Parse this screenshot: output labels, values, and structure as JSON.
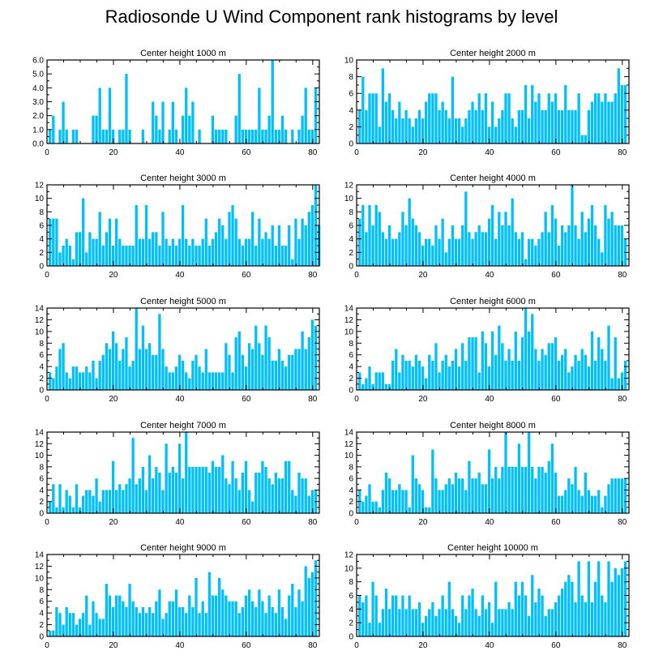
{
  "title": "Radiosonde U Wind Component rank histograms by level",
  "colors": {
    "bar": "#00bfff",
    "frame": "#000000"
  },
  "chart_data": [
    {
      "type": "bar",
      "title": "Center height 1000 m",
      "xlim": [
        0,
        82
      ],
      "ylim": [
        0,
        6
      ],
      "xticks": [
        "0",
        "20",
        "40",
        "60",
        "80"
      ],
      "yticks": [
        "0.0",
        "1.0",
        "2.0",
        "3.0",
        "4.0",
        "5.0",
        "6.0"
      ],
      "values": [
        1,
        2,
        0,
        1,
        3,
        1,
        0,
        1,
        1,
        0,
        0,
        0,
        0,
        2,
        2,
        4,
        1,
        1,
        4,
        1,
        0,
        1,
        1,
        5,
        1,
        0,
        0,
        0,
        1,
        0,
        0,
        3,
        2,
        1,
        3,
        0,
        1,
        3,
        1,
        0,
        2,
        4,
        2,
        3,
        0,
        1,
        0,
        0,
        0,
        2,
        1,
        1,
        1,
        1,
        0,
        0,
        2,
        5,
        1,
        1,
        1,
        1,
        1,
        4,
        1,
        1,
        2,
        6,
        1,
        1,
        2,
        1,
        0,
        1,
        0,
        1,
        2,
        4,
        1,
        1,
        4
      ],
      "yticks_right": false
    },
    {
      "type": "bar",
      "title": "Center height 2000 m",
      "xlim": [
        0,
        82
      ],
      "ylim": [
        0,
        10
      ],
      "xticks": [
        "0",
        "20",
        "40",
        "60",
        "80"
      ],
      "yticks": [
        "0",
        "2",
        "4",
        "6",
        "8",
        "10"
      ],
      "values": [
        4,
        8,
        4,
        6,
        6,
        6,
        2,
        9,
        5,
        6,
        4,
        3,
        5,
        3,
        4,
        3,
        2,
        3,
        4,
        3,
        5,
        6,
        6,
        6,
        4,
        5,
        4,
        3,
        8,
        3,
        3,
        2,
        3,
        4,
        5,
        4,
        6,
        4,
        6,
        2,
        5,
        2,
        3,
        4,
        6,
        6,
        3,
        2,
        4,
        4,
        7,
        3,
        7,
        5,
        6,
        4,
        4,
        6,
        5,
        6,
        4,
        4,
        7,
        4,
        4,
        4,
        6,
        1,
        1,
        4,
        5,
        6,
        6,
        5,
        6,
        5,
        5,
        6,
        9,
        7,
        7
      ],
      "yticks_right": false
    },
    {
      "type": "bar",
      "title": "Center height 3000 m",
      "xlim": [
        0,
        82
      ],
      "ylim": [
        0,
        12
      ],
      "xticks": [
        "0",
        "20",
        "40",
        "60",
        "80"
      ],
      "yticks": [
        "0",
        "2",
        "4",
        "6",
        "8",
        "10",
        "12"
      ],
      "values": [
        7,
        7,
        7,
        2,
        3,
        4,
        3,
        1,
        5,
        5,
        10,
        2,
        5,
        4,
        4,
        8,
        3,
        5,
        7,
        3,
        7,
        4,
        3,
        3,
        3,
        3,
        9,
        4,
        4,
        9,
        4,
        5,
        5,
        3,
        8,
        4,
        3,
        4,
        3,
        4,
        9,
        4,
        3,
        4,
        3,
        3,
        4,
        7,
        3,
        4,
        5,
        7,
        6,
        4,
        8,
        9,
        7,
        4,
        3,
        4,
        4,
        8,
        3,
        7,
        4,
        5,
        4,
        6,
        3,
        6,
        3,
        3,
        6,
        1,
        7,
        4,
        7,
        6,
        8,
        9,
        12,
        6
      ],
      "yticks_right": false
    },
    {
      "type": "bar",
      "title": "Center height 4000 m",
      "xlim": [
        0,
        82
      ],
      "ylim": [
        0,
        12
      ],
      "xticks": [
        "0",
        "20",
        "40",
        "60",
        "80"
      ],
      "yticks": [
        "0",
        "2",
        "4",
        "6",
        "8",
        "10",
        "12"
      ],
      "values": [
        7,
        9,
        5,
        9,
        6,
        9,
        8,
        5,
        4,
        6,
        4,
        4,
        5,
        8,
        6,
        10,
        7,
        6,
        5,
        3,
        4,
        4,
        3,
        6,
        4,
        7,
        2,
        4,
        6,
        4,
        4,
        6,
        11,
        5,
        4,
        5,
        6,
        5,
        5,
        7,
        9,
        4,
        8,
        6,
        8,
        6,
        10,
        5,
        4,
        5,
        1,
        4,
        4,
        3,
        4,
        5,
        8,
        5,
        9,
        7,
        3,
        6,
        5,
        6,
        12,
        6,
        4,
        8,
        5,
        7,
        9,
        6,
        4,
        2,
        9,
        7,
        8,
        6,
        6,
        6,
        4
      ],
      "yticks_right": false
    },
    {
      "type": "bar",
      "title": "Center height 5000 m",
      "xlim": [
        0,
        82
      ],
      "ylim": [
        0,
        14
      ],
      "xticks": [
        "0",
        "20",
        "40",
        "60",
        "80"
      ],
      "yticks": [
        "0",
        "2",
        "4",
        "6",
        "8",
        "10",
        "12",
        "14"
      ],
      "values": [
        3,
        2,
        4,
        7,
        8,
        3,
        2,
        4,
        4,
        3,
        3,
        4,
        3,
        5,
        2,
        5,
        6,
        8,
        7,
        10,
        8,
        5,
        7,
        9,
        4,
        5,
        14,
        7,
        11,
        7,
        8,
        6,
        6,
        13,
        7,
        4,
        3,
        3,
        4,
        6,
        5,
        3,
        2,
        5,
        6,
        4,
        3,
        7,
        3,
        3,
        3,
        3,
        3,
        8,
        6,
        3,
        9,
        10,
        6,
        4,
        8,
        7,
        11,
        8,
        6,
        11,
        9,
        5,
        5,
        7,
        5,
        4,
        6,
        6,
        7,
        7,
        10,
        7,
        9,
        12,
        11
      ],
      "yticks_right": false
    },
    {
      "type": "bar",
      "title": "Center height 6000 m",
      "xlim": [
        0,
        82
      ],
      "ylim": [
        0,
        14
      ],
      "xticks": [
        "0",
        "20",
        "40",
        "60",
        "80"
      ],
      "yticks": [
        "0",
        "2",
        "4",
        "6",
        "8",
        "10",
        "12",
        "14"
      ],
      "values": [
        3,
        1,
        2,
        4,
        1,
        3,
        3,
        3,
        1,
        1,
        5,
        7,
        3,
        6,
        5,
        5,
        4,
        6,
        5,
        4,
        2,
        6,
        5,
        8,
        3,
        5,
        6,
        4,
        5,
        7,
        4,
        8,
        5,
        9,
        9,
        9,
        3,
        10,
        8,
        4,
        10,
        6,
        11,
        8,
        5,
        7,
        5,
        10,
        5,
        9,
        14,
        10,
        13,
        7,
        5,
        7,
        6,
        8,
        8,
        9,
        5,
        6,
        7,
        3,
        4,
        6,
        5,
        7,
        6,
        4,
        10,
        5,
        9,
        7,
        5,
        11,
        2,
        9,
        2,
        3,
        5
      ],
      "yticks_right": false
    },
    {
      "type": "bar",
      "title": "Center height 7000 m",
      "xlim": [
        0,
        82
      ],
      "ylim": [
        0,
        14
      ],
      "xticks": [
        "0",
        "20",
        "40",
        "60",
        "80"
      ],
      "yticks": [
        "0",
        "2",
        "4",
        "6",
        "8",
        "10",
        "12",
        "14"
      ],
      "values": [
        2,
        5,
        1,
        5,
        1,
        4,
        3,
        1,
        5,
        1,
        3,
        4,
        4,
        3,
        6,
        2,
        4,
        4,
        4,
        9,
        4,
        5,
        4,
        5,
        6,
        13,
        5,
        6,
        8,
        4,
        10,
        6,
        8,
        7,
        4,
        12,
        7,
        8,
        7,
        12,
        6,
        14,
        8,
        8,
        8,
        8,
        8,
        8,
        7,
        9,
        8,
        8,
        10,
        6,
        5,
        9,
        6,
        4,
        7,
        9,
        4,
        2,
        7,
        7,
        9,
        8,
        6,
        5,
        7,
        6,
        6,
        9,
        9,
        4,
        3,
        7,
        6,
        6,
        3,
        4,
        4
      ],
      "yticks_right": false
    },
    {
      "type": "bar",
      "title": "Center height 8000 m",
      "xlim": [
        0,
        82
      ],
      "ylim": [
        0,
        14
      ],
      "xticks": [
        "0",
        "20",
        "40",
        "60",
        "80"
      ],
      "yticks": [
        "0",
        "2",
        "4",
        "6",
        "8",
        "10",
        "12",
        "14"
      ],
      "values": [
        4,
        2,
        3,
        5,
        2,
        2,
        1,
        4,
        7,
        6,
        4,
        4,
        5,
        4,
        4,
        1,
        10,
        6,
        5,
        4,
        1,
        1,
        11,
        6,
        4,
        4,
        5,
        6,
        5,
        7,
        6,
        6,
        4,
        9,
        6,
        6,
        7,
        5,
        5,
        11,
        6,
        8,
        6,
        8,
        14,
        8,
        8,
        8,
        12,
        8,
        8,
        14,
        8,
        6,
        8,
        8,
        7,
        9,
        12,
        7,
        3,
        3,
        4,
        6,
        5,
        8,
        4,
        3,
        7,
        4,
        3,
        3,
        4,
        1,
        3,
        5,
        6,
        6,
        6,
        6,
        6
      ],
      "yticks_right": false
    },
    {
      "type": "bar",
      "title": "Center height 9000 m",
      "xlim": [
        0,
        82
      ],
      "ylim": [
        0,
        14
      ],
      "xticks": [
        "0",
        "20",
        "40",
        "60",
        "80"
      ],
      "yticks": [
        "0",
        "2",
        "4",
        "6",
        "8",
        "10",
        "12",
        "14"
      ],
      "values": [
        1,
        1,
        5,
        4,
        2,
        5,
        4,
        4,
        2,
        3,
        4,
        7,
        2,
        6,
        4,
        3,
        3,
        9,
        7,
        5,
        7,
        7,
        6,
        5,
        9,
        6,
        5,
        4,
        5,
        4,
        5,
        4,
        6,
        8,
        3,
        4,
        6,
        6,
        8,
        5,
        5,
        4,
        7,
        5,
        10,
        4,
        6,
        4,
        11,
        7,
        7,
        10,
        8,
        7,
        6,
        6,
        6,
        4,
        5,
        7,
        8,
        6,
        5,
        8,
        6,
        4,
        7,
        5,
        4,
        8,
        5,
        3,
        7,
        9,
        5,
        8,
        6,
        12,
        10,
        11,
        13
      ],
      "yticks_right": false
    },
    {
      "type": "bar",
      "title": "Center height 10000 m",
      "xlim": [
        0,
        82
      ],
      "ylim": [
        0,
        12
      ],
      "xticks": [
        "0",
        "20",
        "40",
        "60",
        "80"
      ],
      "yticks": [
        "0",
        "2",
        "4",
        "6",
        "8",
        "10",
        "12"
      ],
      "values": [
        6,
        5,
        6,
        2,
        8,
        6,
        2,
        4,
        7,
        4,
        6,
        6,
        4,
        6,
        4,
        6,
        4,
        4,
        5,
        2,
        3,
        4,
        5,
        3,
        4,
        6,
        4,
        8,
        4,
        3,
        2,
        6,
        4,
        6,
        7,
        4,
        3,
        6,
        4,
        5,
        2,
        8,
        4,
        4,
        4,
        5,
        4,
        8,
        6,
        8,
        6,
        3,
        9,
        5,
        7,
        6,
        3,
        4,
        4,
        5,
        6,
        7,
        8,
        9,
        8,
        5,
        11,
        6,
        5,
        11,
        5,
        8,
        11,
        6,
        5,
        11,
        8,
        10,
        9,
        10,
        11
      ],
      "yticks_right": false
    }
  ]
}
